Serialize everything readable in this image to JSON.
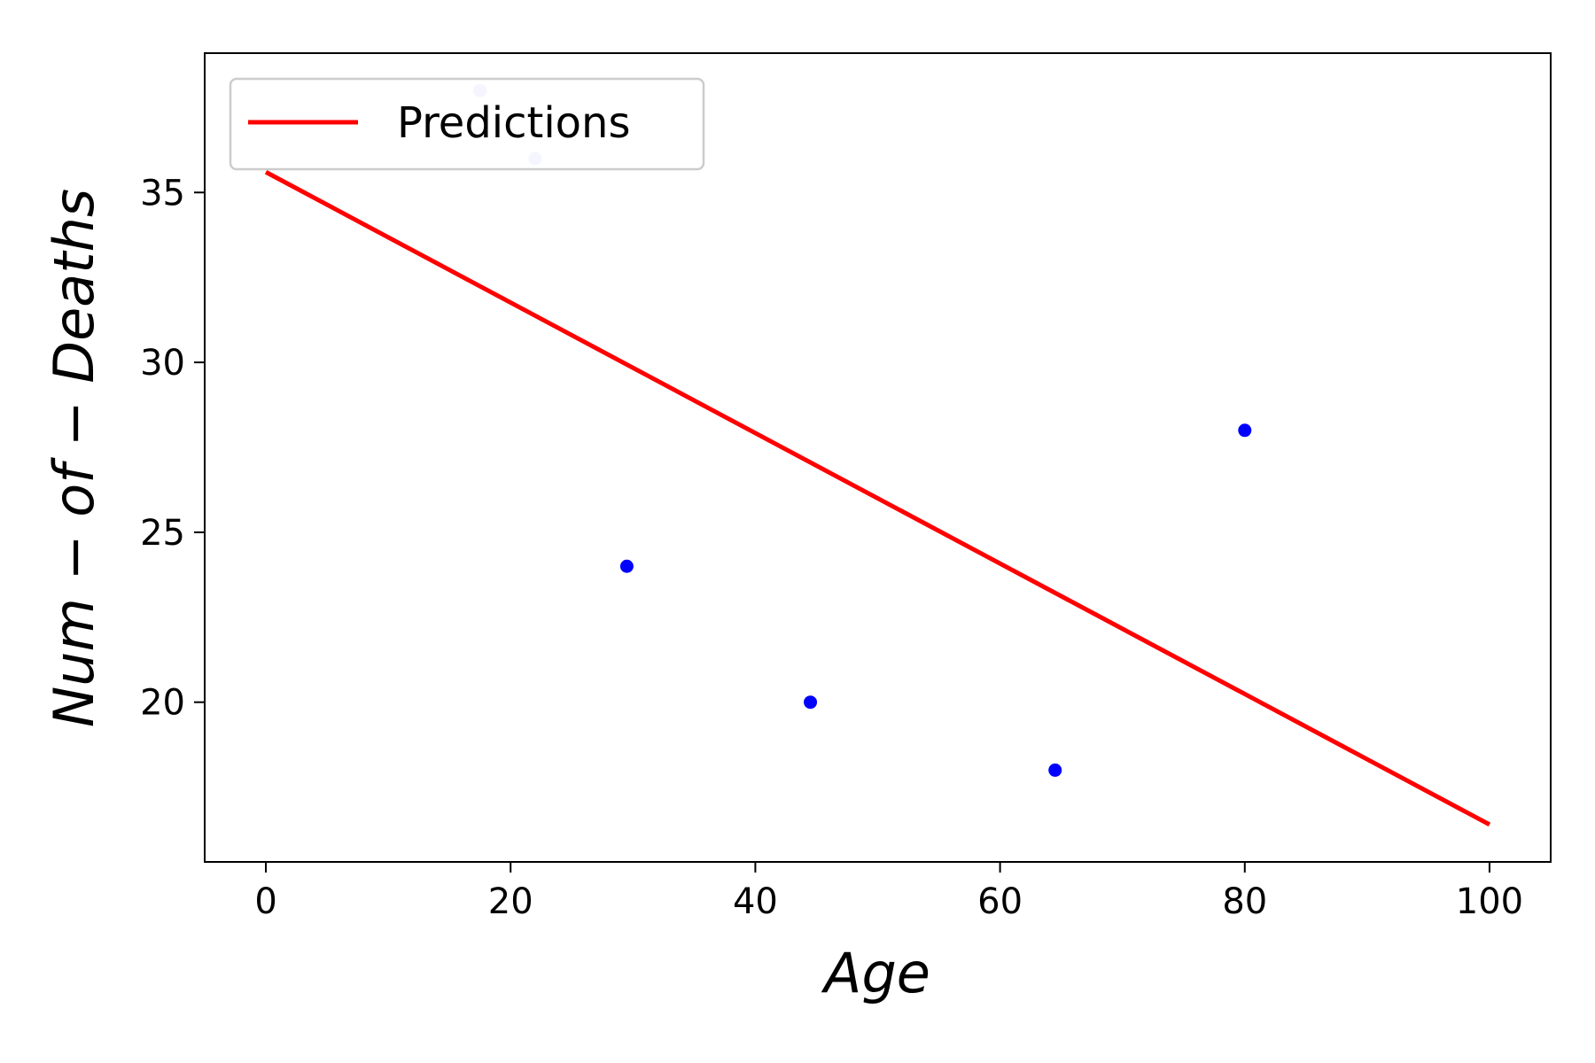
{
  "chart_data": {
    "type": "scatter",
    "title": "",
    "xlabel": "Age",
    "ylabel": "Num − of − Deaths",
    "xlim": [
      -5,
      105
    ],
    "ylim": [
      15.3,
      39.1
    ],
    "x_ticks": [
      0,
      20,
      40,
      60,
      80,
      100
    ],
    "y_ticks": [
      20,
      25,
      30,
      35
    ],
    "grid": false,
    "legend_position": "top-left",
    "scatter_series": {
      "color": "#0000ff",
      "points": [
        {
          "x": 17.5,
          "y": 38,
          "alpha": 0.2
        },
        {
          "x": 22,
          "y": 36,
          "alpha": 0.2
        },
        {
          "x": 29.5,
          "y": 24,
          "alpha": 1
        },
        {
          "x": 44.5,
          "y": 20,
          "alpha": 1
        },
        {
          "x": 64.5,
          "y": 18,
          "alpha": 1
        },
        {
          "x": 80,
          "y": 28,
          "alpha": 1
        }
      ]
    },
    "line_series": {
      "name": "Predictions",
      "color": "#ff0000",
      "points": [
        {
          "x": 0,
          "y": 35.6
        },
        {
          "x": 100,
          "y": 16.4
        }
      ]
    }
  }
}
